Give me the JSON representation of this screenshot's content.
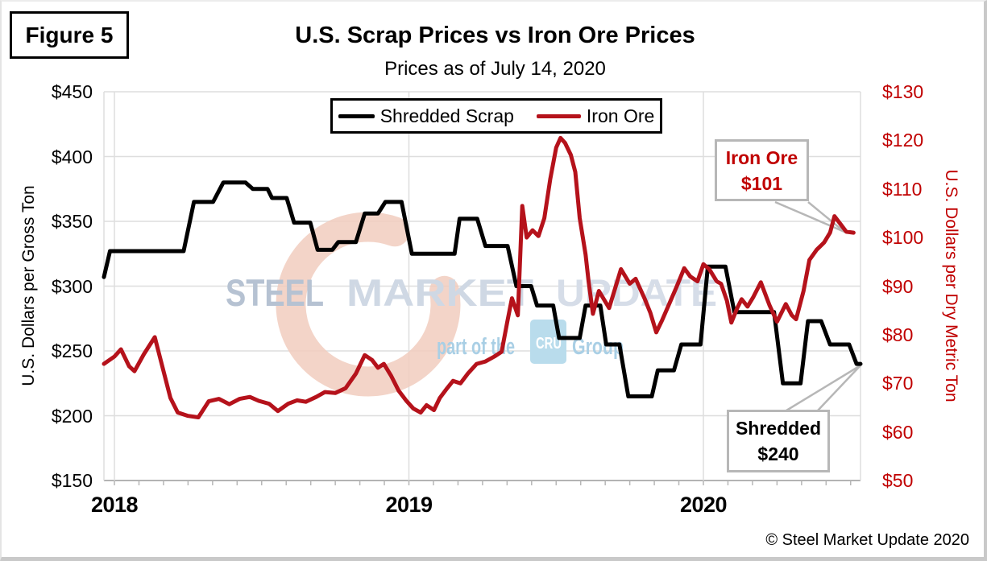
{
  "figure_label": "Figure 5",
  "title": "U.S. Scrap Prices vs Iron Ore Prices",
  "subtitle": "Prices as of July 14, 2020",
  "legend": {
    "items": [
      {
        "label": "Shredded Scrap",
        "color": "#000000"
      },
      {
        "label": "Iron Ore",
        "color": "#b5121b"
      }
    ]
  },
  "axes": {
    "left": {
      "title": "U.S. Dollars per Gross Ton",
      "tick_labels": [
        "$450",
        "$400",
        "$350",
        "$300",
        "$250",
        "$200",
        "$150"
      ],
      "tick_values": [
        450,
        400,
        350,
        300,
        250,
        200,
        150
      ],
      "color": "#000000"
    },
    "right": {
      "title": "U.S. Dollars per Dry Metric Ton",
      "tick_labels": [
        "$130",
        "$120",
        "$110",
        "$100",
        "$90",
        "$80",
        "$70",
        "$60",
        "$50"
      ],
      "tick_values": [
        130,
        120,
        110,
        100,
        90,
        80,
        70,
        60,
        50
      ],
      "color": "#c00000"
    },
    "x": {
      "tick_labels": [
        "2018",
        "2019",
        "2020"
      ],
      "tick_values": [
        2018,
        2019,
        2020
      ]
    }
  },
  "annotations": {
    "iron_ore": {
      "line1": "Iron Ore",
      "line2": "$101",
      "color": "#c00000"
    },
    "shredded": {
      "line1": "Shredded",
      "line2": "$240",
      "color": "#000000"
    }
  },
  "watermark": {
    "word1": "STEEL",
    "word2": "MARKET",
    "word3": "UPDATE",
    "tagline_prefix": "part of the",
    "logo": "CRU",
    "tagline_suffix": "Group",
    "colors": {
      "word1": "#b6c2d2",
      "word2": "#cfd8e4",
      "word3": "#d6dde8",
      "tagline": "#a9cfe5",
      "logo_bg": "#b9dcec",
      "crescent": "#f1ccbe"
    }
  },
  "footer": {
    "copyright": "© Steel Market Update 2020"
  },
  "chart_data": {
    "type": "line",
    "title": "U.S. Scrap Prices vs Iron Ore Prices",
    "subtitle": "Prices as of July 14, 2020",
    "xlabel": "",
    "ylabel": "U.S. Dollars per Gross Ton",
    "y2label": "U.S. Dollars per Dry Metric Ton",
    "x_unit": "decimal_year",
    "x_range": [
      2017.9644,
      2020.5335
    ],
    "left_ylim": [
      150,
      450
    ],
    "right_ylim": [
      50,
      130
    ],
    "grid": true,
    "legend_position": "top-center",
    "series": [
      {
        "name": "Shredded Scrap",
        "axis": "left",
        "color": "#000000",
        "width": 5,
        "points": [
          [
            2017.9644,
            307
          ],
          [
            2017.985,
            327
          ],
          [
            2018.235,
            327
          ],
          [
            2018.27,
            365
          ],
          [
            2018.335,
            365
          ],
          [
            2018.37,
            380
          ],
          [
            2018.445,
            380
          ],
          [
            2018.47,
            375
          ],
          [
            2018.52,
            375
          ],
          [
            2018.535,
            368
          ],
          [
            2018.585,
            368
          ],
          [
            2018.61,
            349
          ],
          [
            2018.665,
            349
          ],
          [
            2018.69,
            328
          ],
          [
            2018.74,
            328
          ],
          [
            2018.76,
            334
          ],
          [
            2018.82,
            334
          ],
          [
            2018.85,
            356
          ],
          [
            2018.895,
            356
          ],
          [
            2018.92,
            365
          ],
          [
            2018.975,
            365
          ],
          [
            2019.01,
            325
          ],
          [
            2019.155,
            325
          ],
          [
            2019.172,
            352
          ],
          [
            2019.232,
            352
          ],
          [
            2019.26,
            331
          ],
          [
            2019.335,
            331
          ],
          [
            2019.365,
            300
          ],
          [
            2019.415,
            300
          ],
          [
            2019.435,
            285
          ],
          [
            2019.49,
            285
          ],
          [
            2019.51,
            260
          ],
          [
            2019.58,
            260
          ],
          [
            2019.6,
            285
          ],
          [
            2019.65,
            285
          ],
          [
            2019.67,
            255
          ],
          [
            2019.715,
            255
          ],
          [
            2019.745,
            215
          ],
          [
            2019.825,
            215
          ],
          [
            2019.845,
            235
          ],
          [
            2019.9,
            235
          ],
          [
            2019.925,
            255
          ],
          [
            2019.99,
            255
          ],
          [
            2020.015,
            315
          ],
          [
            2020.075,
            315
          ],
          [
            2020.105,
            280
          ],
          [
            2020.24,
            280
          ],
          [
            2020.27,
            225
          ],
          [
            2020.33,
            225
          ],
          [
            2020.355,
            273
          ],
          [
            2020.4,
            273
          ],
          [
            2020.43,
            255
          ],
          [
            2020.495,
            255
          ],
          [
            2020.52,
            240
          ],
          [
            2020.5335,
            240
          ]
        ]
      },
      {
        "name": "Iron Ore",
        "axis": "right",
        "color": "#b5121b",
        "width": 5,
        "points": [
          [
            2017.9644,
            74
          ],
          [
            2018.0,
            75.5
          ],
          [
            2018.022,
            77
          ],
          [
            2018.05,
            73.5
          ],
          [
            2018.068,
            72.5
          ],
          [
            2018.1,
            76
          ],
          [
            2018.137,
            79.5
          ],
          [
            2018.19,
            67
          ],
          [
            2018.215,
            64
          ],
          [
            2018.25,
            63.3
          ],
          [
            2018.285,
            63
          ],
          [
            2018.32,
            66.3
          ],
          [
            2018.355,
            66.8
          ],
          [
            2018.39,
            65.7
          ],
          [
            2018.425,
            66.8
          ],
          [
            2018.46,
            67.2
          ],
          [
            2018.49,
            66.4
          ],
          [
            2018.525,
            65.8
          ],
          [
            2018.555,
            64.3
          ],
          [
            2018.59,
            65.8
          ],
          [
            2018.62,
            66.5
          ],
          [
            2018.65,
            66.2
          ],
          [
            2018.685,
            67.2
          ],
          [
            2018.715,
            68.2
          ],
          [
            2018.75,
            68
          ],
          [
            2018.785,
            69
          ],
          [
            2018.82,
            72
          ],
          [
            2018.85,
            75.8
          ],
          [
            2018.875,
            74.8
          ],
          [
            2018.895,
            73.2
          ],
          [
            2018.915,
            74
          ],
          [
            2018.94,
            71.5
          ],
          [
            2018.965,
            68.5
          ],
          [
            2018.99,
            66.5
          ],
          [
            2019.015,
            64.8
          ],
          [
            2019.04,
            64
          ],
          [
            2019.06,
            65.5
          ],
          [
            2019.085,
            64.5
          ],
          [
            2019.105,
            67
          ],
          [
            2019.13,
            69
          ],
          [
            2019.15,
            70.5
          ],
          [
            2019.175,
            70
          ],
          [
            2019.2,
            72
          ],
          [
            2019.23,
            74
          ],
          [
            2019.26,
            74.5
          ],
          [
            2019.29,
            75.5
          ],
          [
            2019.315,
            76.5
          ],
          [
            2019.335,
            83
          ],
          [
            2019.35,
            87.5
          ],
          [
            2019.37,
            84
          ],
          [
            2019.385,
            106.5
          ],
          [
            2019.4,
            100
          ],
          [
            2019.42,
            101.5
          ],
          [
            2019.44,
            100.3
          ],
          [
            2019.46,
            104
          ],
          [
            2019.48,
            112
          ],
          [
            2019.5,
            118.5
          ],
          [
            2019.515,
            120.5
          ],
          [
            2019.53,
            119.5
          ],
          [
            2019.55,
            117
          ],
          [
            2019.565,
            113.5
          ],
          [
            2019.58,
            104
          ],
          [
            2019.6,
            96.5
          ],
          [
            2019.61,
            91
          ],
          [
            2019.625,
            84.3
          ],
          [
            2019.645,
            89
          ],
          [
            2019.68,
            85.5
          ],
          [
            2019.72,
            93.5
          ],
          [
            2019.75,
            90.5
          ],
          [
            2019.77,
            91.5
          ],
          [
            2019.8,
            87.5
          ],
          [
            2019.82,
            84.5
          ],
          [
            2019.84,
            80.5
          ],
          [
            2019.86,
            83
          ],
          [
            2019.885,
            86.5
          ],
          [
            2019.91,
            90
          ],
          [
            2019.935,
            93.7
          ],
          [
            2019.955,
            92
          ],
          [
            2019.98,
            91
          ],
          [
            2020.0,
            94.5
          ],
          [
            2020.02,
            93.5
          ],
          [
            2020.045,
            91
          ],
          [
            2020.06,
            90.5
          ],
          [
            2020.08,
            87
          ],
          [
            2020.095,
            82.5
          ],
          [
            2020.115,
            85.5
          ],
          [
            2020.13,
            87.3
          ],
          [
            2020.15,
            85.8
          ],
          [
            2020.17,
            87.8
          ],
          [
            2020.195,
            90.8
          ],
          [
            2020.225,
            86
          ],
          [
            2020.25,
            82.7
          ],
          [
            2020.28,
            86.3
          ],
          [
            2020.3,
            84
          ],
          [
            2020.315,
            83.2
          ],
          [
            2020.34,
            89
          ],
          [
            2020.36,
            95.4
          ],
          [
            2020.385,
            97.5
          ],
          [
            2020.41,
            99
          ],
          [
            2020.43,
            101
          ],
          [
            2020.445,
            104.4
          ],
          [
            2020.465,
            102.8
          ],
          [
            2020.485,
            101.2
          ],
          [
            2020.51,
            101
          ]
        ]
      }
    ],
    "end_labels": {
      "iron_ore": 101,
      "shredded": 240
    }
  }
}
